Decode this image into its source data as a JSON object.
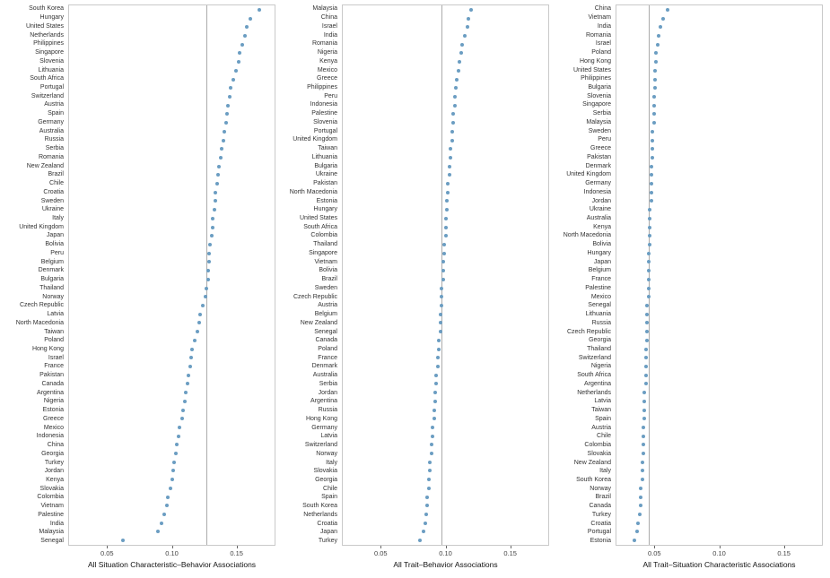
{
  "figure": {
    "dot_color": "#6b9dc2",
    "reference_line_color": "#ababab",
    "xtick_labels": [
      "0.05",
      "0.10",
      "0.15"
    ]
  },
  "chart_data": [
    {
      "type": "scatter",
      "title": "",
      "xlabel": "All Situation Characteristic–Behavior Associations",
      "ylabel": "",
      "xlim": [
        0.02,
        0.18
      ],
      "xticks": [
        0.05,
        0.1,
        0.15
      ],
      "grid": false,
      "legend": "none",
      "reference_line": 0.127,
      "categories": [
        "South Korea",
        "Hungary",
        "United States",
        "Netherlands",
        "Philippines",
        "Singapore",
        "Slovenia",
        "Lithuania",
        "South Africa",
        "Portugal",
        "Switzerland",
        "Austria",
        "Spain",
        "Germany",
        "Australia",
        "Russia",
        "Serbia",
        "Romania",
        "New Zealand",
        "Brazil",
        "Chile",
        "Croatia",
        "Sweden",
        "Ukraine",
        "Italy",
        "United Kingdom",
        "Japan",
        "Bolivia",
        "Peru",
        "Belgium",
        "Denmark",
        "Bulgaria",
        "Thailand",
        "Norway",
        "Czech Republic",
        "Latvia",
        "North Macedonia",
        "Taiwan",
        "Poland",
        "Hong Kong",
        "Israel",
        "France",
        "Pakistan",
        "Canada",
        "Argentina",
        "Nigeria",
        "Estonia",
        "Greece",
        "Mexico",
        "Indonesia",
        "China",
        "Georgia",
        "Turkey",
        "Jordan",
        "Kenya",
        "Slovakia",
        "Colombia",
        "Vietnam",
        "Palestine",
        "India",
        "Malaysia",
        "Senegal"
      ],
      "values": [
        0.168,
        0.161,
        0.158,
        0.157,
        0.155,
        0.153,
        0.152,
        0.15,
        0.148,
        0.146,
        0.145,
        0.144,
        0.143,
        0.142,
        0.141,
        0.14,
        0.139,
        0.138,
        0.137,
        0.136,
        0.135,
        0.134,
        0.134,
        0.133,
        0.132,
        0.132,
        0.131,
        0.13,
        0.129,
        0.129,
        0.128,
        0.128,
        0.127,
        0.126,
        0.124,
        0.122,
        0.121,
        0.12,
        0.118,
        0.116,
        0.115,
        0.114,
        0.113,
        0.112,
        0.111,
        0.11,
        0.109,
        0.108,
        0.106,
        0.105,
        0.104,
        0.103,
        0.102,
        0.101,
        0.1,
        0.099,
        0.097,
        0.096,
        0.094,
        0.092,
        0.089,
        0.062
      ]
    },
    {
      "type": "scatter",
      "title": "",
      "xlabel": "All Trait–Behavior Associations",
      "ylabel": "",
      "xlim": [
        0.02,
        0.18
      ],
      "xticks": [
        0.05,
        0.1,
        0.15
      ],
      "grid": false,
      "legend": "none",
      "reference_line": 0.097,
      "categories": [
        "Malaysia",
        "China",
        "Israel",
        "India",
        "Romania",
        "Nigeria",
        "Kenya",
        "Mexico",
        "Greece",
        "Philippines",
        "Peru",
        "Indonesia",
        "Palestine",
        "Slovenia",
        "Portugal",
        "United Kingdom",
        "Taiwan",
        "Lithuania",
        "Bulgaria",
        "Ukraine",
        "Pakistan",
        "North Macedonia",
        "Estonia",
        "Hungary",
        "United States",
        "South Africa",
        "Colombia",
        "Thailand",
        "Singapore",
        "Vietnam",
        "Bolivia",
        "Brazil",
        "Sweden",
        "Czech Republic",
        "Austria",
        "Belgium",
        "New Zealand",
        "Senegal",
        "Canada",
        "Poland",
        "France",
        "Denmark",
        "Australia",
        "Serbia",
        "Jordan",
        "Argentina",
        "Russia",
        "Hong Kong",
        "Germany",
        "Latvia",
        "Switzerland",
        "Norway",
        "Italy",
        "Slovakia",
        "Georgia",
        "Chile",
        "Spain",
        "South Korea",
        "Netherlands",
        "Croatia",
        "Japan",
        "Turkey"
      ],
      "values": [
        0.12,
        0.118,
        0.117,
        0.115,
        0.113,
        0.112,
        0.111,
        0.11,
        0.109,
        0.108,
        0.107,
        0.107,
        0.106,
        0.106,
        0.105,
        0.105,
        0.104,
        0.104,
        0.103,
        0.103,
        0.102,
        0.102,
        0.101,
        0.101,
        0.1,
        0.1,
        0.1,
        0.099,
        0.099,
        0.098,
        0.098,
        0.098,
        0.097,
        0.097,
        0.097,
        0.096,
        0.096,
        0.096,
        0.095,
        0.095,
        0.094,
        0.094,
        0.093,
        0.093,
        0.092,
        0.092,
        0.091,
        0.091,
        0.09,
        0.09,
        0.089,
        0.089,
        0.088,
        0.088,
        0.087,
        0.087,
        0.086,
        0.086,
        0.085,
        0.084,
        0.083,
        0.08
      ]
    },
    {
      "type": "scatter",
      "title": "",
      "xlabel": "All Trait–Situation Characteristic Associations",
      "ylabel": "",
      "xlim": [
        0.02,
        0.18
      ],
      "xticks": [
        0.05,
        0.1,
        0.15
      ],
      "grid": false,
      "legend": "none",
      "reference_line": 0.045,
      "categories": [
        "China",
        "Vietnam",
        "India",
        "Romania",
        "Israel",
        "Poland",
        "Hong Kong",
        "United States",
        "Philippines",
        "Bulgaria",
        "Slovenia",
        "Singapore",
        "Serbia",
        "Malaysia",
        "Sweden",
        "Peru",
        "Greece",
        "Pakistan",
        "Denmark",
        "United Kingdom",
        "Germany",
        "Indonesia",
        "Jordan",
        "Ukraine",
        "Australia",
        "Kenya",
        "North Macedonia",
        "Bolivia",
        "Hungary",
        "Japan",
        "Belgium",
        "France",
        "Palestine",
        "Mexico",
        "Senegal",
        "Lithuania",
        "Russia",
        "Czech Republic",
        "Georgia",
        "Thailand",
        "Switzerland",
        "Nigeria",
        "South Africa",
        "Argentina",
        "Netherlands",
        "Latvia",
        "Taiwan",
        "Spain",
        "Austria",
        "Chile",
        "Colombia",
        "Slovakia",
        "New Zealand",
        "Italy",
        "South Korea",
        "Norway",
        "Brazil",
        "Canada",
        "Turkey",
        "Croatia",
        "Portugal",
        "Estonia"
      ],
      "values": [
        0.06,
        0.056,
        0.054,
        0.053,
        0.052,
        0.051,
        0.051,
        0.05,
        0.05,
        0.05,
        0.049,
        0.049,
        0.049,
        0.049,
        0.048,
        0.048,
        0.048,
        0.048,
        0.047,
        0.047,
        0.047,
        0.047,
        0.047,
        0.046,
        0.046,
        0.046,
        0.046,
        0.046,
        0.045,
        0.045,
        0.045,
        0.045,
        0.045,
        0.045,
        0.044,
        0.044,
        0.044,
        0.044,
        0.044,
        0.043,
        0.043,
        0.043,
        0.043,
        0.043,
        0.042,
        0.042,
        0.042,
        0.042,
        0.041,
        0.041,
        0.041,
        0.041,
        0.04,
        0.04,
        0.04,
        0.039,
        0.039,
        0.039,
        0.038,
        0.037,
        0.036,
        0.034
      ]
    }
  ]
}
